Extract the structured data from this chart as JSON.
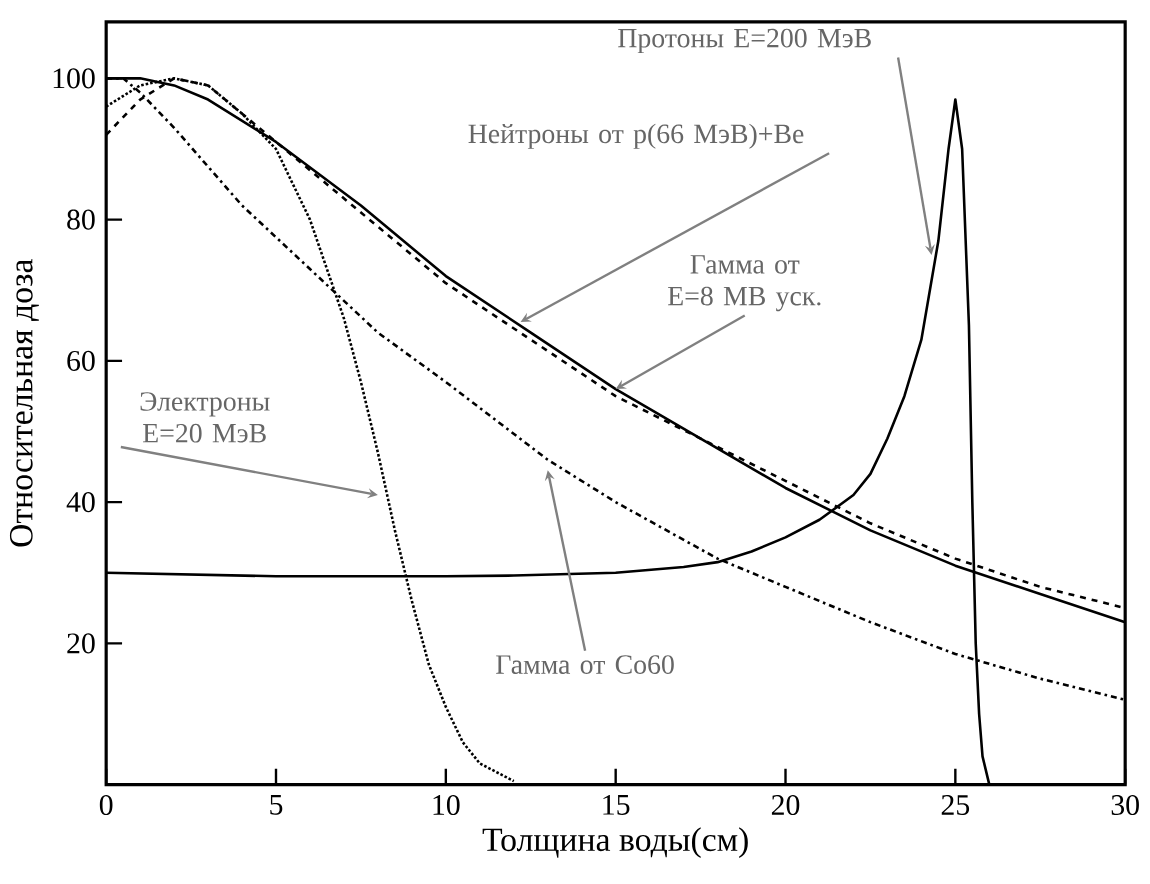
{
  "chart_data": {
    "type": "line",
    "xlabel": "Толщина воды(см)",
    "ylabel": "Относительная доза",
    "xlim": [
      0,
      30
    ],
    "ylim": [
      0,
      108
    ],
    "xticks": [
      0,
      5,
      10,
      15,
      20,
      25,
      30
    ],
    "yticks": [
      20,
      40,
      60,
      80,
      100
    ],
    "series": [
      {
        "color": "#000000",
        "line_style": "solid",
        "x": [
          0,
          5,
          10,
          12,
          15,
          17,
          18,
          19,
          20,
          21,
          22,
          22.5,
          23,
          23.5,
          24,
          24.5,
          24.8,
          25,
          25.2,
          25.4,
          25.5,
          25.6,
          25.7,
          25.8,
          26
        ],
        "values": [
          30,
          29.5,
          29.5,
          29.6,
          30,
          30.8,
          31.5,
          33,
          35,
          37.5,
          41,
          44,
          49,
          55,
          63,
          77,
          90,
          97,
          90,
          65,
          40,
          20,
          10,
          4,
          0
        ]
      },
      {
        "color": "#000000",
        "line_style": "solid",
        "x": [
          0,
          1,
          2,
          3,
          5,
          7.5,
          10,
          12.5,
          15,
          17.5,
          20,
          22.5,
          25,
          27.5,
          30
        ],
        "values": [
          100,
          100,
          99,
          97,
          91,
          82,
          72,
          64,
          56,
          49,
          42,
          36,
          31,
          27,
          23
        ]
      },
      {
        "color": "#000000",
        "line_style": "dashed",
        "x": [
          0,
          1,
          2,
          3,
          5,
          7.5,
          10,
          12.5,
          15,
          17.5,
          20,
          22.5,
          25,
          27.5,
          30
        ],
        "values": [
          92,
          97,
          100,
          99,
          91,
          81,
          71,
          63,
          55,
          49,
          43,
          37,
          32,
          28,
          25
        ]
      },
      {
        "color": "#000000",
        "line_style": "dotted",
        "x": [
          0,
          1,
          2,
          3,
          4,
          5,
          6,
          7,
          7.5,
          8,
          8.5,
          9,
          9.5,
          10,
          10.5,
          11,
          12
        ],
        "values": [
          96,
          99,
          100,
          99,
          95,
          90,
          80,
          66,
          57,
          47,
          36,
          26,
          17,
          11,
          6,
          3,
          0.5
        ]
      },
      {
        "color": "#000000",
        "line_style": "dashdot",
        "x": [
          0,
          0.5,
          1,
          2,
          4,
          6,
          8,
          10,
          13,
          15,
          18,
          20,
          22.5,
          25,
          27.5,
          30
        ],
        "values": [
          100,
          100,
          98,
          93,
          82,
          73,
          64,
          57,
          46,
          40,
          32,
          28,
          23,
          18.5,
          15,
          12
        ]
      }
    ],
    "annotations": [
      {
        "text": "Протоны E=200 МэВ",
        "x": 24.3,
        "y": 75
      },
      {
        "text": "Нейтроны от p(66 МэВ)+Be",
        "x": 12.2,
        "y": 65.5
      },
      {
        "text": "Гамма от E=8 МВ уск.",
        "x": 15,
        "y": 56
      },
      {
        "text": "Электроны E=20 МэВ",
        "x": 8,
        "y": 41
      },
      {
        "text": "Гамма от Co60",
        "x": 13,
        "y": 44.5
      }
    ]
  }
}
